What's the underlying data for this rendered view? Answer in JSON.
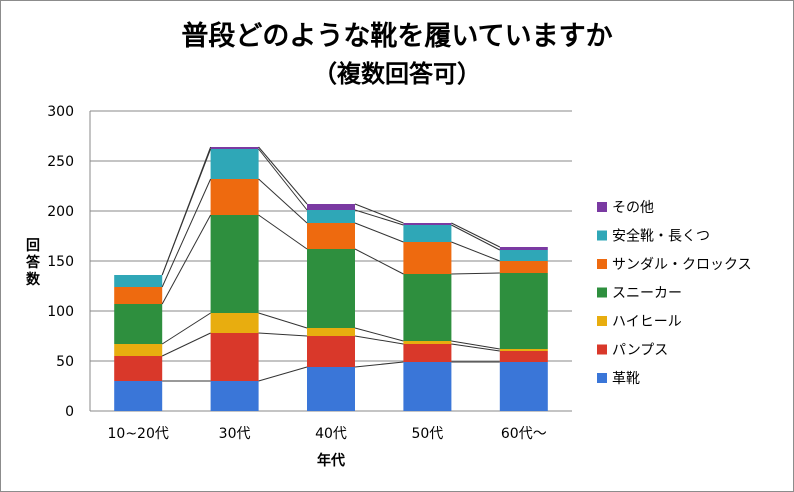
{
  "chart_data": {
    "type": "bar",
    "stacked": true,
    "title": "普段どのような靴を履いていますか",
    "subtitle": "（複数回答可）",
    "xlabel": "年代",
    "ylabel": "回答数",
    "ylim": [
      0,
      300
    ],
    "yticks": [
      "0",
      "50",
      "100",
      "150",
      "200",
      "250",
      "300"
    ],
    "grid": true,
    "series_lines": true,
    "legend_position": "right",
    "categories": [
      "10~20代",
      "30代",
      "40代",
      "50代",
      "60代～"
    ],
    "series": [
      {
        "name": "革靴",
        "color": "#3a76d8",
        "values": [
          30,
          30,
          44,
          49,
          49
        ]
      },
      {
        "name": "パンプス",
        "color": "#d9382a",
        "values": [
          25,
          48,
          31,
          18,
          11
        ]
      },
      {
        "name": "ハイヒール",
        "color": "#e8ad0f",
        "values": [
          12,
          20,
          8,
          3,
          2
        ]
      },
      {
        "name": "スニーカー",
        "color": "#2e8f3e",
        "values": [
          40,
          98,
          79,
          67,
          76
        ]
      },
      {
        "name": "サンダル・クロックス",
        "color": "#ee6a0f",
        "values": [
          17,
          36,
          26,
          32,
          12
        ]
      },
      {
        "name": "安全靴・長くつ",
        "color": "#2fa7b7",
        "values": [
          12,
          30,
          13,
          17,
          11
        ]
      },
      {
        "name": "その他",
        "color": "#7a3aa2",
        "values": [
          0,
          2,
          6,
          2,
          3
        ]
      }
    ]
  }
}
